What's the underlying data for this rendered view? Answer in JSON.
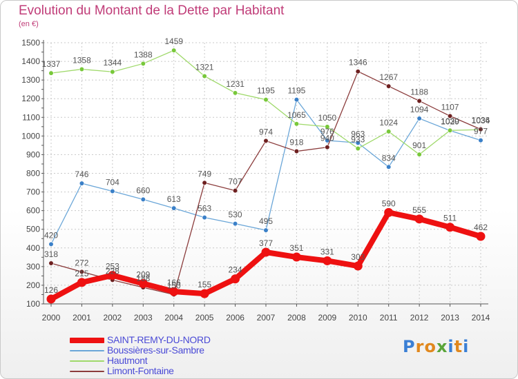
{
  "header": {
    "title": "Evolution du Montant de la Dette par Habitant",
    "unit": "(en €)"
  },
  "logo": {
    "text": "Proxiti",
    "letter_colors": [
      "#3a7fd5",
      "#e1881e",
      "#e1881e",
      "#5aa53a",
      "#3a7fd5",
      "#e1881e",
      "#3a7fd5"
    ]
  },
  "colors": {
    "grid": "#c8c8c8",
    "axis": "#555555",
    "tick_text": "#444444",
    "label_text": "#555555",
    "legend_text": "#4a4ad6",
    "title": "#c03c78"
  },
  "chart_data": {
    "type": "line",
    "title": "Evolution du Montant de la Dette par Habitant",
    "ylabel": "(en €)",
    "xlabel": "",
    "x": [
      2000,
      2001,
      2002,
      2003,
      2004,
      2005,
      2006,
      2007,
      2008,
      2009,
      2010,
      2011,
      2012,
      2013,
      2014
    ],
    "ylim": [
      100,
      1500
    ],
    "yticks": [
      100,
      200,
      300,
      400,
      500,
      600,
      700,
      800,
      900,
      1000,
      1100,
      1200,
      1300,
      1400,
      1500
    ],
    "grid": true,
    "legend_position": "bottom-left",
    "series": [
      {
        "name": "SAINT-REMY-DU-NORD",
        "color": "#ee1111",
        "marker_color": "#ee1111",
        "emphasis": true,
        "values": [
          126,
          215,
          253,
          209,
          166,
          155,
          234,
          377,
          351,
          331,
          303,
          590,
          555,
          511,
          462
        ]
      },
      {
        "name": "Boussières-sur-Sambre",
        "color": "#6aa6d8",
        "marker_color": "#3a80c8",
        "emphasis": false,
        "values": [
          420,
          746,
          704,
          660,
          613,
          563,
          530,
          495,
          1195,
          976,
          963,
          834,
          1094,
          1029,
          977
        ]
      },
      {
        "name": "Hautmont",
        "color": "#9fd96a",
        "marker_color": "#78c83a",
        "emphasis": false,
        "values": [
          1337,
          1358,
          1344,
          1388,
          1459,
          1321,
          1231,
          1195,
          1065,
          1050,
          933,
          1024,
          901,
          1030,
          1034
        ]
      },
      {
        "name": "Limont-Fontaine",
        "color": "#8b3c3c",
        "marker_color": "#6e2020",
        "emphasis": false,
        "values": [
          318,
          272,
          228,
          188,
          150,
          749,
          707,
          974,
          918,
          940,
          1346,
          1267,
          1188,
          1107,
          1036
        ]
      }
    ]
  }
}
